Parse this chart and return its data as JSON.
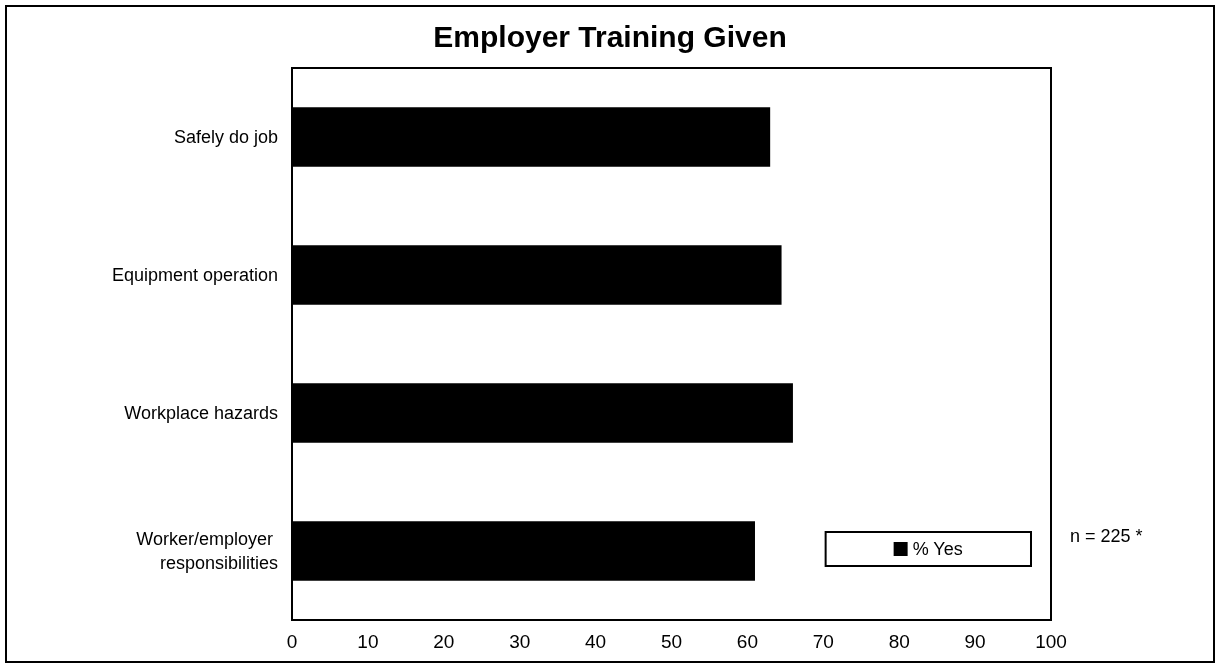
{
  "chart_data": {
    "type": "bar",
    "orientation": "horizontal",
    "title": "Employer Training Given",
    "categories": [
      "Safely do job",
      "Equipment operation",
      "Workplace hazards",
      "Worker/employer responsibilities"
    ],
    "series": [
      {
        "name": "% Yes",
        "color": "#000000",
        "values": [
          63,
          64.5,
          66,
          61
        ]
      }
    ],
    "xlim": [
      0,
      100
    ],
    "xticks": [
      0,
      10,
      20,
      30,
      40,
      50,
      60,
      70,
      80,
      90,
      100
    ],
    "grid": false,
    "legend": "bottom right",
    "annotations": [
      "n = 225 *"
    ]
  }
}
